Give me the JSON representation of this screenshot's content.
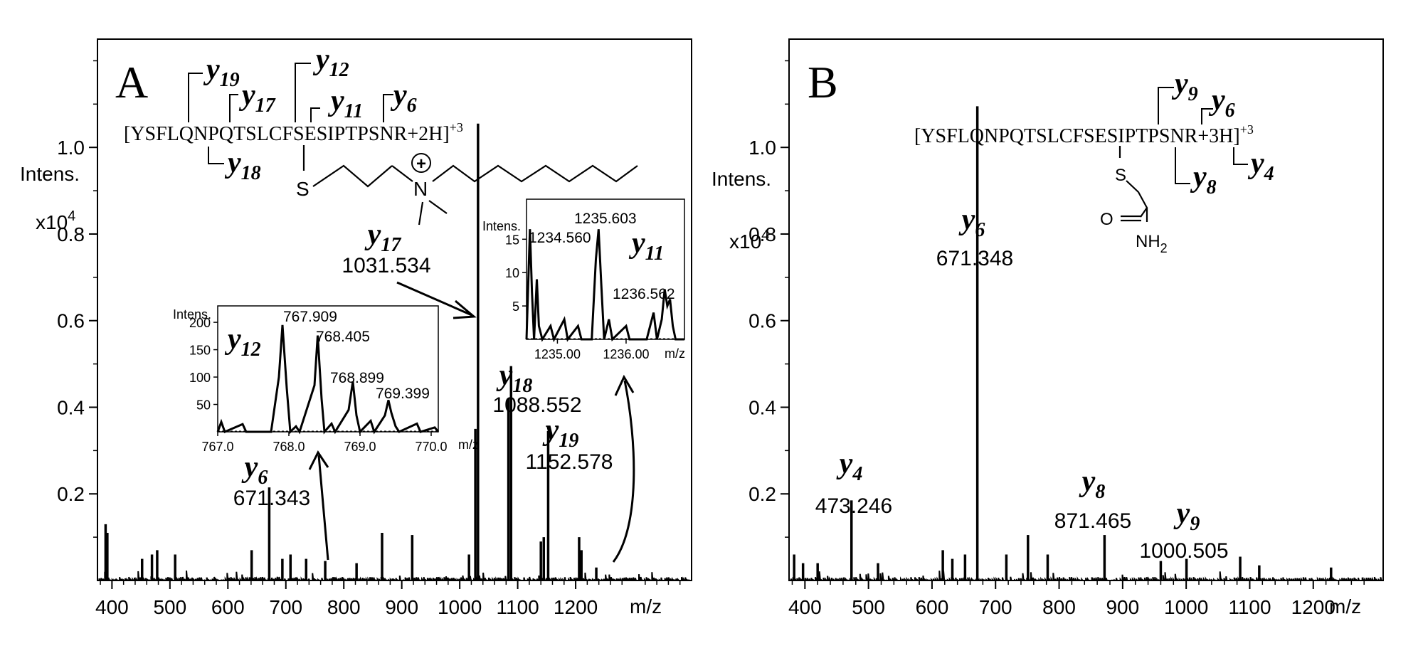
{
  "chart_data": [
    {
      "panel": "A",
      "type": "bar",
      "title": "A",
      "ylabel_line1": "Intens.",
      "ylabel_line2": "x10",
      "ylabel_exp": "4",
      "xlabel": "m/z",
      "xlim": [
        375,
        1400
      ],
      "ylim": [
        0,
        1.25
      ],
      "xticks": [
        400,
        500,
        600,
        700,
        800,
        900,
        1000,
        1100,
        1200
      ],
      "yticks": [
        0.2,
        0.4,
        0.6,
        0.8,
        1.0
      ],
      "ytick_labels": [
        "0.2",
        "0.4",
        "0.6",
        "0.8",
        "1.0"
      ],
      "peptide": {
        "sequence": "[YSFLQNPQTSLCFSESIPTPSNR+2H]",
        "charge": "+3",
        "top_ions": [
          {
            "label": "y",
            "sub": "19"
          },
          {
            "label": "y",
            "sub": "17"
          },
          {
            "label": "y",
            "sub": "12"
          },
          {
            "label": "y",
            "sub": "11"
          },
          {
            "label": "y",
            "sub": "6"
          }
        ],
        "bottom_ions": [
          {
            "label": "y",
            "sub": "18"
          }
        ],
        "modification": {
          "sulfur": "S",
          "nitrogen": "N",
          "charge_symbol": "+"
        }
      },
      "peaks": [
        {
          "x": 389,
          "y": 0.13
        },
        {
          "x": 392,
          "y": 0.11
        },
        {
          "x": 452,
          "y": 0.05
        },
        {
          "x": 469,
          "y": 0.06
        },
        {
          "x": 478,
          "y": 0.07
        },
        {
          "x": 509,
          "y": 0.06
        },
        {
          "x": 641,
          "y": 0.07
        },
        {
          "x": 671.343,
          "y": 0.215
        },
        {
          "x": 694,
          "y": 0.05
        },
        {
          "x": 708,
          "y": 0.06
        },
        {
          "x": 735,
          "y": 0.05
        },
        {
          "x": 767.9,
          "y": 0.045
        },
        {
          "x": 822,
          "y": 0.04
        },
        {
          "x": 866,
          "y": 0.11
        },
        {
          "x": 918,
          "y": 0.105
        },
        {
          "x": 1016,
          "y": 0.06
        },
        {
          "x": 1027,
          "y": 0.35
        },
        {
          "x": 1031.534,
          "y": 1.055
        },
        {
          "x": 1084,
          "y": 0.42
        },
        {
          "x": 1088.552,
          "y": 0.495
        },
        {
          "x": 1140,
          "y": 0.09
        },
        {
          "x": 1145,
          "y": 0.1
        },
        {
          "x": 1152.578,
          "y": 0.345
        },
        {
          "x": 1206,
          "y": 0.1
        },
        {
          "x": 1210,
          "y": 0.07
        },
        {
          "x": 1235.6,
          "y": 0.03
        }
      ],
      "labels": [
        {
          "ion": "y",
          "sub": "6",
          "mz": "671.343"
        },
        {
          "ion": "y",
          "sub": "17",
          "mz": "1031.534"
        },
        {
          "ion": "y",
          "sub": "18",
          "mz": "1088.552"
        },
        {
          "ion": "y",
          "sub": "19",
          "mz": "1152.578"
        }
      ],
      "insets": [
        {
          "ylabel": "Intens.",
          "ion": "y",
          "sub": "12",
          "xlim": [
            767.0,
            770.1
          ],
          "ylim": [
            0,
            230
          ],
          "xticks": [
            767.0,
            768.0,
            769.0,
            770.0
          ],
          "xtick_labels": [
            "767.0",
            "768.0",
            "769.0",
            "770.0"
          ],
          "yticks": [
            50,
            100,
            150,
            200
          ],
          "ytick_labels": [
            "50",
            "100",
            "150",
            "200"
          ],
          "xlabel": "m/z",
          "peak_labels": [
            "767.909",
            "768.405",
            "768.899",
            "769.399"
          ],
          "profile": [
            [
              767.0,
              0
            ],
            [
              767.05,
              18
            ],
            [
              767.1,
              0
            ],
            [
              767.35,
              14
            ],
            [
              767.4,
              0
            ],
            [
              767.75,
              0
            ],
            [
              767.86,
              100
            ],
            [
              767.91,
              195
            ],
            [
              767.97,
              80
            ],
            [
              768.02,
              0
            ],
            [
              768.1,
              10
            ],
            [
              768.15,
              0
            ],
            [
              768.36,
              85
            ],
            [
              768.405,
              176
            ],
            [
              768.46,
              60
            ],
            [
              768.5,
              0
            ],
            [
              768.6,
              15
            ],
            [
              768.65,
              0
            ],
            [
              768.84,
              40
            ],
            [
              768.899,
              92
            ],
            [
              768.95,
              30
            ],
            [
              769.0,
              0
            ],
            [
              769.15,
              20
            ],
            [
              769.2,
              0
            ],
            [
              769.35,
              30
            ],
            [
              769.399,
              58
            ],
            [
              769.44,
              35
            ],
            [
              769.5,
              10
            ],
            [
              769.55,
              0
            ],
            [
              769.8,
              15
            ],
            [
              769.85,
              0
            ],
            [
              770.05,
              8
            ],
            [
              770.1,
              0
            ]
          ]
        },
        {
          "ylabel": "Intens.",
          "ion": "y",
          "sub": "11",
          "xlim": [
            1234.55,
            1236.85
          ],
          "ylim": [
            0,
            21
          ],
          "xticks": [
            1235.0,
            1236.0
          ],
          "xtick_labels": [
            "1235.00",
            "1236.00"
          ],
          "yticks": [
            5,
            10,
            15
          ],
          "ytick_labels": [
            "5",
            "10",
            "15"
          ],
          "xlabel": "m/z",
          "peak_labels": [
            "1234.560",
            "1235.603",
            "1236.562"
          ],
          "profile": [
            [
              1234.55,
              0
            ],
            [
              1234.6,
              16.5
            ],
            [
              1234.63,
              7
            ],
            [
              1234.66,
              0
            ],
            [
              1234.7,
              9
            ],
            [
              1234.73,
              2
            ],
            [
              1234.78,
              0
            ],
            [
              1234.9,
              2
            ],
            [
              1234.95,
              0
            ],
            [
              1235.1,
              3
            ],
            [
              1235.15,
              0
            ],
            [
              1235.3,
              2
            ],
            [
              1235.35,
              0
            ],
            [
              1235.5,
              0
            ],
            [
              1235.56,
              12
            ],
            [
              1235.6,
              16.5
            ],
            [
              1235.64,
              8
            ],
            [
              1235.68,
              0
            ],
            [
              1235.75,
              3
            ],
            [
              1235.8,
              0
            ],
            [
              1236.0,
              2
            ],
            [
              1236.05,
              0
            ],
            [
              1236.3,
              0
            ],
            [
              1236.4,
              4
            ],
            [
              1236.45,
              0
            ],
            [
              1236.52,
              3
            ],
            [
              1236.562,
              7.5
            ],
            [
              1236.6,
              5
            ],
            [
              1236.64,
              6
            ],
            [
              1236.68,
              2
            ],
            [
              1236.72,
              0
            ],
            [
              1236.85,
              0
            ]
          ]
        }
      ]
    },
    {
      "panel": "B",
      "type": "bar",
      "title": "B",
      "ylabel_line1": "Intens.",
      "ylabel_line2": "x10",
      "ylabel_exp": "4",
      "xlabel": "m/z",
      "xlim": [
        375,
        1310
      ],
      "ylim": [
        0,
        1.25
      ],
      "xticks": [
        400,
        500,
        600,
        700,
        800,
        900,
        1000,
        1100,
        1200
      ],
      "yticks": [
        0.2,
        0.4,
        0.6,
        0.8,
        1.0
      ],
      "ytick_labels": [
        "0.2",
        "0.4",
        "0.6",
        "0.8",
        "1.0"
      ],
      "peptide": {
        "sequence": "[YSFLQNPQTSLCFSESIPTPSNR+3H]",
        "charge": "+3",
        "top_ions": [
          {
            "label": "y",
            "sub": "9"
          },
          {
            "label": "y",
            "sub": "6"
          }
        ],
        "bottom_ions": [
          {
            "label": "y",
            "sub": "8"
          },
          {
            "label": "y",
            "sub": "4"
          }
        ],
        "modification": {
          "sulfur": "S",
          "oxygen": "O",
          "amine": "NH",
          "amine_sub": "2"
        }
      },
      "peaks": [
        {
          "x": 383,
          "y": 0.06
        },
        {
          "x": 397,
          "y": 0.04
        },
        {
          "x": 420,
          "y": 0.04
        },
        {
          "x": 473.246,
          "y": 0.185
        },
        {
          "x": 515,
          "y": 0.04
        },
        {
          "x": 617,
          "y": 0.07
        },
        {
          "x": 632,
          "y": 0.05
        },
        {
          "x": 652,
          "y": 0.06
        },
        {
          "x": 671.348,
          "y": 1.095
        },
        {
          "x": 717,
          "y": 0.06
        },
        {
          "x": 751,
          "y": 0.105
        },
        {
          "x": 782,
          "y": 0.06
        },
        {
          "x": 871.465,
          "y": 0.105
        },
        {
          "x": 960,
          "y": 0.045
        },
        {
          "x": 1000.505,
          "y": 0.05
        },
        {
          "x": 1085,
          "y": 0.055
        },
        {
          "x": 1115,
          "y": 0.035
        },
        {
          "x": 1228,
          "y": 0.03
        }
      ],
      "labels": [
        {
          "ion": "y",
          "sub": "4",
          "mz": "473.246"
        },
        {
          "ion": "y",
          "sub": "6",
          "mz": "671.348"
        },
        {
          "ion": "y",
          "sub": "8",
          "mz": "871.465"
        },
        {
          "ion": "y",
          "sub": "9",
          "mz": "1000.505"
        }
      ]
    }
  ]
}
